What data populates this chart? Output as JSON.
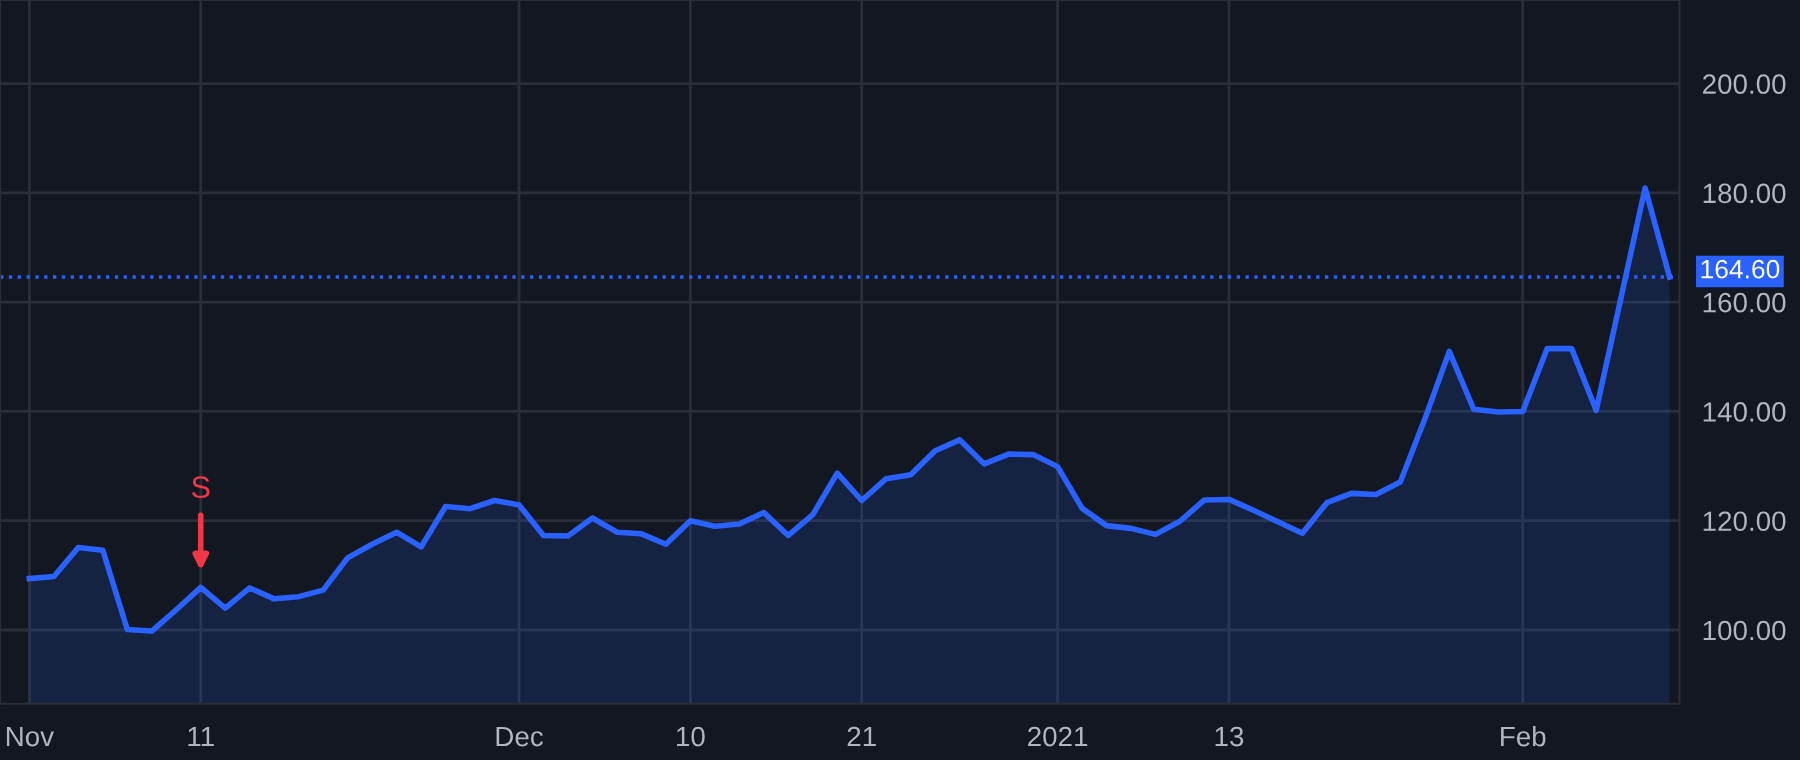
{
  "chart_data": {
    "type": "area",
    "categories": [
      "Nov",
      null,
      null,
      null,
      null,
      null,
      null,
      "11",
      null,
      null,
      null,
      null,
      null,
      null,
      null,
      null,
      null,
      null,
      null,
      null,
      "Dec",
      null,
      null,
      null,
      null,
      null,
      null,
      "10",
      null,
      null,
      null,
      null,
      null,
      null,
      "21",
      null,
      null,
      null,
      null,
      null,
      null,
      null,
      "2021",
      null,
      null,
      null,
      null,
      null,
      null,
      "13",
      null,
      null,
      null,
      null,
      null,
      null,
      null,
      null,
      null,
      null,
      null,
      "Feb",
      null,
      null,
      null,
      null,
      null,
      null
    ],
    "series": [
      {
        "color": "#2962ff",
        "values": [
          109.4,
          109.8,
          115.1,
          114.6,
          100.1,
          99.8,
          103.7,
          107.8,
          104.0,
          107.7,
          105.7,
          106.1,
          107.3,
          113.2,
          115.7,
          117.9,
          115.2,
          122.6,
          122.2,
          123.7,
          122.9,
          117.3,
          117.2,
          120.5,
          117.9,
          117.6,
          115.7,
          120.0,
          119.0,
          119.4,
          121.5,
          117.3,
          121.1,
          128.7,
          123.7,
          127.7,
          128.4,
          132.8,
          134.8,
          130.4,
          132.2,
          132.1,
          129.9,
          122.3,
          119.1,
          118.6,
          117.5,
          119.9,
          123.8,
          123.9,
          121.9,
          119.8,
          117.7,
          123.3,
          125.0,
          124.8,
          127.1,
          138.6,
          151.0,
          140.4,
          139.9,
          140.0,
          151.5,
          151.5,
          140.2,
          160.5,
          180.9,
          164.6
        ]
      }
    ],
    "ylim": [
      86.5,
      215.3
    ],
    "yticks": [
      {
        "value": 100,
        "label": "100.00"
      },
      {
        "value": 120,
        "label": "120.00"
      },
      {
        "value": 140,
        "label": "140.00"
      },
      {
        "value": 160,
        "label": "160.00"
      },
      {
        "value": 180,
        "label": "180.00"
      },
      {
        "value": 200,
        "label": "200.00"
      }
    ],
    "ref_lines": [
      {
        "axis": "y",
        "value": 164.6,
        "label": "164.60",
        "color": "#2962ff",
        "line_style": "dotted"
      }
    ],
    "annotations": [
      {
        "text": "S",
        "x": "11",
        "y": 107.8
      }
    ],
    "grid": true
  }
}
